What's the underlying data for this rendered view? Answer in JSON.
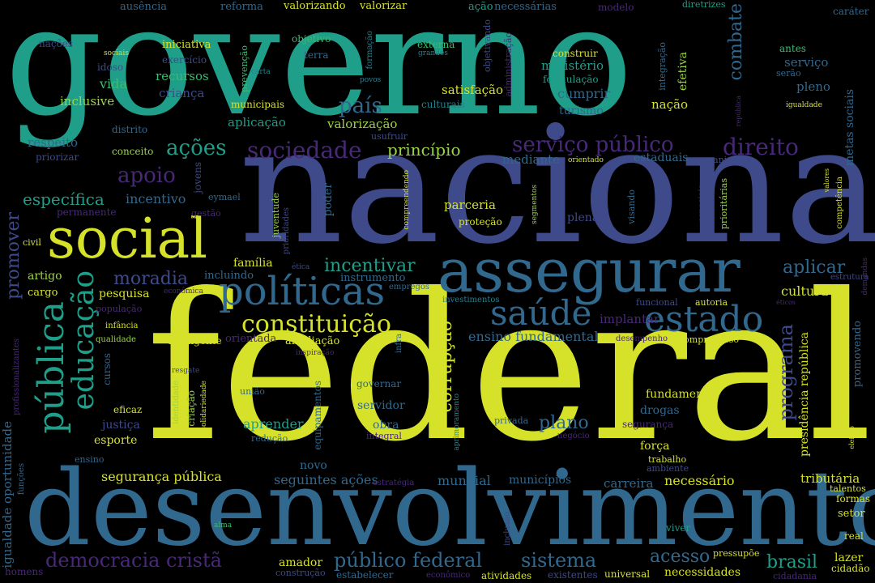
{
  "palette": {
    "yellow": "#d6e22a",
    "lime": "#9bd447",
    "green": "#3bbc6f",
    "teal": "#1f9e89",
    "teal2": "#26828e",
    "blue": "#31688e",
    "indigo": "#3e4a89",
    "purple": "#482878",
    "dark": "#440154"
  },
  "words": [
    "governo",
    "nacional",
    "federal",
    "desenvolvimento",
    "social",
    "assegurar",
    "políticas",
    "saúde",
    "estado",
    "constituição",
    "pública",
    "educação",
    "sociedade",
    "serviço público",
    "direito",
    "ações",
    "apoio",
    "país",
    "princípio",
    "específica",
    "incentivo",
    "combate",
    "incentivar",
    "moradia",
    "promover",
    "democracia cristã",
    "público federal",
    "sistema",
    "acesso",
    "brasil",
    "programa",
    "corrupção",
    "plano",
    "aplicar",
    "cultura",
    "segurança pública",
    "seguintes ações",
    "mundial",
    "carreira",
    "necessário",
    "ensino fundamental",
    "implantar",
    "presidência república",
    "tributária",
    "ausência",
    "reforma",
    "valorizando",
    "valorizar",
    "ação",
    "necessárias",
    "modelo",
    "diretrizes",
    "caráter",
    "nações",
    "sociais",
    "iniciativa",
    "objetivo",
    "formação",
    "externa",
    "objetivando",
    "administração",
    "construir",
    "integração",
    "efetiva",
    "antes",
    "serviço",
    "serão",
    "idoso",
    "exercício",
    "terra",
    "grandes",
    "povos",
    "ministério",
    "formulação",
    "vida",
    "recursos",
    "prevenção",
    "carta",
    "criança",
    "satisfação",
    "cumprir",
    "pleno",
    "inclusive",
    "municipais",
    "culturais",
    "turismo",
    "nação",
    "república",
    "igualdade",
    "metas sociais",
    "distrito",
    "aplicação",
    "valorização",
    "usufruir",
    "respeito",
    "conceito",
    "priorizar",
    "mediante",
    "orientado",
    "estaduais",
    "mecanismos",
    "jovens",
    "eymael",
    "juventude",
    "prioridades",
    "poder",
    "compreendendo",
    "parceria",
    "proteção",
    "segmentos",
    "plena",
    "visando",
    "prioritárias",
    "especiais",
    "valores",
    "competência",
    "participação",
    "permanente",
    "gestão",
    "civil",
    "família",
    "ética",
    "instrumento",
    "empregos",
    "investimentos",
    "funcional",
    "autoria",
    "estrutura",
    "demandas",
    "artigo",
    "incluindo",
    "cargo",
    "pesquisa",
    "econômica",
    "população",
    "infância",
    "qualidade",
    "inteligente",
    "orientada",
    "ampliação",
    "inspiração",
    "infra",
    "desempenho",
    "compromisso",
    "promovendo",
    "éticos",
    "profissionalizantes",
    "cursos",
    "resgate",
    "identidade",
    "criação",
    "solidariedade",
    "união",
    "equipamentos",
    "aprimoramento",
    "governar",
    "servidor",
    "pessoas",
    "fundamento",
    "eficaz",
    "justiça",
    "aprender",
    "obra",
    "integral",
    "privada",
    "negócio",
    "segurança",
    "drogas",
    "esporte",
    "redução",
    "força",
    "trabalho",
    "ambiente",
    "igualdade oportunidade",
    "funções",
    "ensino",
    "novo",
    "estratégia",
    "municípios",
    "talentos",
    "formas",
    "setor",
    "eleição",
    "alma",
    "inclusão",
    "viver",
    "real",
    "amador",
    "pressupõe",
    "lazer",
    "cidadão",
    "homens",
    "construção",
    "estabelecer",
    "econômico",
    "atividades",
    "existentes",
    "universal",
    "necessidades",
    "cidadania"
  ]
}
